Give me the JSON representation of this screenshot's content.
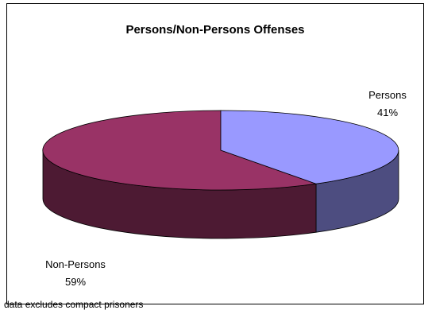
{
  "chart_data": {
    "type": "pie",
    "title": "Persons/Non-Persons Offenses",
    "slices": [
      {
        "label": "Persons",
        "value": 41,
        "value_label": "41%",
        "color": "#9999ff",
        "side_color": "#4d4d80"
      },
      {
        "label": "Non-Persons",
        "value": 59,
        "value_label": "59%",
        "color": "#993366",
        "side_color": "#4d1a33"
      }
    ],
    "legend": "none",
    "footnote": "data excludes compact prisoners"
  }
}
